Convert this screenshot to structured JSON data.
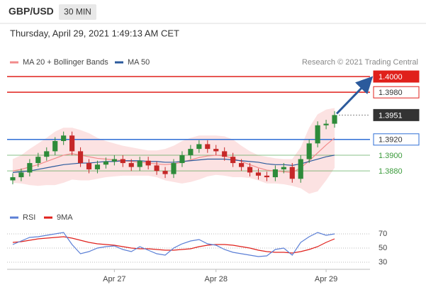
{
  "header": {
    "symbol": "GBP/USD",
    "timeframe": "30 MIN",
    "date": "Thursday, April 29, 2021 1:49:13 AM CET"
  },
  "chart_data": [
    {
      "type": "candlestick",
      "credit": "Research © 2021 Trading Central",
      "up_color": "#2e8b3a",
      "down_color": "#c62828",
      "open": [
        1.3868,
        1.3872,
        1.3878,
        1.389,
        1.3898,
        1.3905,
        1.3918,
        1.3925,
        1.3905,
        1.389,
        1.3882,
        1.3888,
        1.3892,
        1.3895,
        1.389,
        1.3885,
        1.3893,
        1.3887,
        1.388,
        1.3876,
        1.389,
        1.39,
        1.3908,
        1.3914,
        1.3908,
        1.3905,
        1.3898,
        1.389,
        1.3885,
        1.3878,
        1.3874,
        1.3872,
        1.3882,
        1.3885,
        1.387,
        1.3895,
        1.3915,
        1.3938,
        1.394
      ],
      "high": [
        1.3877,
        1.3883,
        1.3895,
        1.3903,
        1.391,
        1.3923,
        1.393,
        1.393,
        1.391,
        1.3895,
        1.3893,
        1.3897,
        1.39,
        1.39,
        1.3895,
        1.3898,
        1.3898,
        1.3892,
        1.3885,
        1.3895,
        1.3905,
        1.3913,
        1.3919,
        1.3919,
        1.3913,
        1.391,
        1.3903,
        1.3895,
        1.389,
        1.3883,
        1.3879,
        1.3887,
        1.389,
        1.389,
        1.39,
        1.392,
        1.3943,
        1.3945,
        1.3956
      ],
      "low": [
        1.3863,
        1.3867,
        1.3873,
        1.3885,
        1.3893,
        1.39,
        1.3913,
        1.39,
        1.3885,
        1.3877,
        1.3877,
        1.3883,
        1.3887,
        1.3885,
        1.388,
        1.388,
        1.3882,
        1.3875,
        1.3871,
        1.3871,
        1.3885,
        1.3895,
        1.3903,
        1.3903,
        1.39,
        1.3893,
        1.3885,
        1.388,
        1.3873,
        1.3869,
        1.3867,
        1.3867,
        1.3877,
        1.3865,
        1.3865,
        1.389,
        1.391,
        1.3933,
        1.3935
      ],
      "close": [
        1.3872,
        1.3878,
        1.389,
        1.3898,
        1.3905,
        1.3918,
        1.3925,
        1.3905,
        1.389,
        1.3882,
        1.3888,
        1.3892,
        1.3895,
        1.389,
        1.3885,
        1.3893,
        1.3887,
        1.388,
        1.3876,
        1.389,
        1.39,
        1.3908,
        1.3914,
        1.3908,
        1.3905,
        1.3898,
        1.389,
        1.3885,
        1.3878,
        1.3874,
        1.3872,
        1.3882,
        1.3885,
        1.387,
        1.3895,
        1.3915,
        1.3938,
        1.394,
        1.3951
      ],
      "series": [
        {
          "name": "MA 20 + Bollinger Bands",
          "color": "#f28b8b",
          "values": [
            1.388,
            1.3882,
            1.3885,
            1.3888,
            1.3892,
            1.3896,
            1.39,
            1.3902,
            1.39,
            1.3898,
            1.3896,
            1.3895,
            1.3894,
            1.3893,
            1.3892,
            1.3891,
            1.389,
            1.3889,
            1.3888,
            1.3889,
            1.3891,
            1.3894,
            1.3897,
            1.3899,
            1.39,
            1.3899,
            1.3896,
            1.3892,
            1.3888,
            1.3884,
            1.3881,
            1.388,
            1.3879,
            1.3878,
            1.3884,
            1.3893,
            1.3903,
            1.3913,
            1.3922
          ],
          "upper": [
            1.3895,
            1.39,
            1.3908,
            1.3915,
            1.3922,
            1.393,
            1.3935,
            1.3935,
            1.3932,
            1.3928,
            1.3922,
            1.3918,
            1.3915,
            1.3912,
            1.391,
            1.3908,
            1.3906,
            1.3906,
            1.3908,
            1.3912,
            1.3918,
            1.3922,
            1.3925,
            1.3925,
            1.3925,
            1.3924,
            1.392,
            1.3912,
            1.3905,
            1.39,
            1.3898,
            1.3896,
            1.3895,
            1.3895,
            1.391,
            1.3935,
            1.3952,
            1.3958,
            1.396
          ],
          "lower": [
            1.3865,
            1.3864,
            1.3862,
            1.3861,
            1.3862,
            1.3862,
            1.3865,
            1.3869,
            1.3868,
            1.3868,
            1.387,
            1.3872,
            1.3873,
            1.3874,
            1.3874,
            1.3874,
            1.3874,
            1.3872,
            1.3868,
            1.3866,
            1.3864,
            1.3866,
            1.3869,
            1.3873,
            1.3875,
            1.3874,
            1.3872,
            1.3872,
            1.3871,
            1.3868,
            1.3864,
            1.3864,
            1.3863,
            1.3861,
            1.3858,
            1.3851,
            1.3854,
            1.3868,
            1.3884
          ]
        },
        {
          "name": "MA 50",
          "color": "#2b5a9c",
          "values": [
            1.3878,
            1.3879,
            1.388,
            1.3882,
            1.3884,
            1.3886,
            1.3888,
            1.3889,
            1.389,
            1.389,
            1.3891,
            1.3892,
            1.3892,
            1.3893,
            1.3893,
            1.3893,
            1.3892,
            1.3892,
            1.3891,
            1.3891,
            1.3892,
            1.3893,
            1.3894,
            1.3895,
            1.3895,
            1.3895,
            1.3894,
            1.3893,
            1.3892,
            1.3891,
            1.3889,
            1.3888,
            1.3888,
            1.3887,
            1.3889,
            1.3892,
            1.3895,
            1.3898,
            1.39
          ]
        }
      ],
      "levels": [
        {
          "value": 1.4,
          "label": "1.4000",
          "color": "#e0201b",
          "box": "fill"
        },
        {
          "value": 1.398,
          "label": "1.3980",
          "color": "#e0201b",
          "box": "outline"
        },
        {
          "value": 1.3951,
          "label": "1.3951",
          "color": "#333333",
          "box": "fill"
        },
        {
          "value": 1.392,
          "label": "1.3920",
          "color": "#2f6fd6",
          "box": "outline"
        },
        {
          "value": 1.39,
          "label": "1.3900",
          "color": "#3a9a3a",
          "box": "none"
        },
        {
          "value": 1.388,
          "label": "1.3880",
          "color": "#3a9a3a",
          "box": "none"
        }
      ],
      "ylim": [
        1.3836,
        1.4009
      ]
    },
    {
      "type": "line",
      "categories": [
        null,
        null,
        null,
        null,
        null,
        null,
        null,
        null,
        null,
        null,
        null,
        null,
        "Apr 27",
        null,
        null,
        null,
        null,
        null,
        null,
        null,
        null,
        null,
        null,
        null,
        "Apr 28",
        null,
        null,
        null,
        null,
        null,
        null,
        null,
        null,
        null,
        null,
        null,
        null,
        "Apr 29",
        null
      ],
      "series": [
        {
          "name": "RSI",
          "color": "#5b7fd6",
          "values": [
            55,
            60,
            65,
            66,
            68,
            70,
            72,
            55,
            42,
            45,
            50,
            52,
            53,
            48,
            45,
            52,
            47,
            42,
            40,
            50,
            56,
            60,
            62,
            56,
            54,
            48,
            44,
            42,
            40,
            38,
            39,
            48,
            50,
            40,
            58,
            66,
            72,
            68,
            70
          ]
        },
        {
          "name": "9MA",
          "color": "#e0201b",
          "values": [
            58,
            59,
            61,
            63,
            64,
            65,
            66,
            64,
            61,
            58,
            56,
            55,
            54,
            52,
            50,
            49,
            49,
            48,
            47,
            47,
            48,
            49,
            52,
            54,
            55,
            55,
            54,
            52,
            50,
            47,
            45,
            44,
            44,
            43,
            45,
            48,
            52,
            58,
            63
          ]
        }
      ],
      "ylim": [
        20,
        78
      ],
      "yticks": [
        30,
        50,
        70
      ]
    }
  ]
}
